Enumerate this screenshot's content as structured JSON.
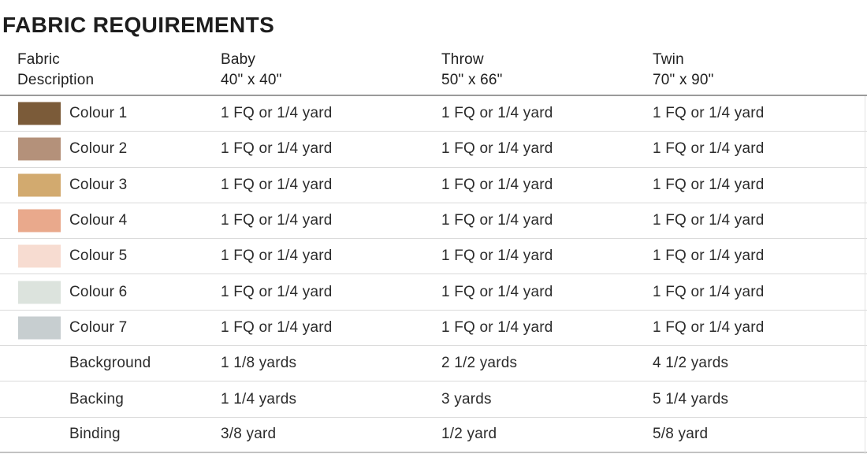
{
  "page_title": "FABRIC REQUIREMENTS",
  "table": {
    "header": {
      "fabric": {
        "line1": "Fabric",
        "line2": "Description"
      },
      "baby": {
        "line1": "Baby",
        "line2": "40\" x 40\""
      },
      "throw": {
        "line1": "Throw",
        "line2": "50\" x 66\""
      },
      "twin": {
        "line1": "Twin",
        "line2": "70\" x 90\""
      }
    },
    "rows": [
      {
        "label": "Colour 1",
        "swatch_color": "#7b5b39",
        "baby": "1 FQ or 1/4 yard",
        "throw": "1 FQ or 1/4 yard",
        "twin": "1 FQ or 1/4 yard"
      },
      {
        "label": "Colour 2",
        "swatch_color": "#b4917a",
        "baby": "1 FQ or 1/4 yard",
        "throw": "1 FQ or 1/4 yard",
        "twin": "1 FQ or 1/4 yard"
      },
      {
        "label": "Colour 3",
        "swatch_color": "#d2aa6f",
        "baby": "1 FQ or 1/4 yard",
        "throw": "1 FQ or 1/4 yard",
        "twin": "1 FQ or 1/4 yard"
      },
      {
        "label": "Colour 4",
        "swatch_color": "#e9a98c",
        "baby": "1 FQ or 1/4 yard",
        "throw": "1 FQ or 1/4 yard",
        "twin": "1 FQ or 1/4 yard"
      },
      {
        "label": "Colour 5",
        "swatch_color": "#f7dcd1",
        "baby": "1 FQ or 1/4 yard",
        "throw": "1 FQ or 1/4 yard",
        "twin": "1 FQ or 1/4 yard"
      },
      {
        "label": "Colour 6",
        "swatch_color": "#dce3dd",
        "baby": "1 FQ or 1/4 yard",
        "throw": "1 FQ or 1/4 yard",
        "twin": "1 FQ or 1/4 yard"
      },
      {
        "label": "Colour 7",
        "swatch_color": "#c7ced0",
        "baby": "1 FQ or 1/4 yard",
        "throw": "1 FQ or 1/4 yard",
        "twin": "1 FQ or 1/4 yard"
      },
      {
        "label": "Background",
        "swatch_color": null,
        "baby": "1 1/8 yards",
        "throw": "2 1/2 yards",
        "twin": "4 1/2 yards"
      },
      {
        "label": "Backing",
        "swatch_color": null,
        "baby": "1 1/4 yards",
        "throw": "3 yards",
        "twin": "5 1/4 yards"
      },
      {
        "label": "Binding",
        "swatch_color": null,
        "baby": "3/8 yard",
        "throw": "1/2 yard",
        "twin": "5/8 yard"
      }
    ]
  }
}
